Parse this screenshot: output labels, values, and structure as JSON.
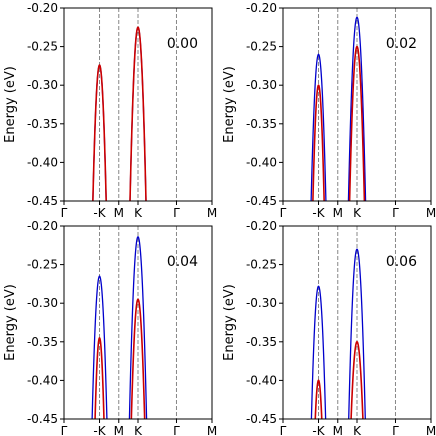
{
  "chart_data": [
    {
      "type": "line",
      "annotation": "0.00",
      "ylabel": "Energy (eV)",
      "ylim": [
        -0.45,
        -0.2
      ],
      "yticks": [
        "-0.20",
        "-0.25",
        "-0.30",
        "-0.35",
        "-0.40",
        "-0.45"
      ],
      "xlim": [
        0,
        1
      ],
      "xticks": [
        {
          "label": "Γ",
          "x": 0.0,
          "line": false
        },
        {
          "label": "-K",
          "x": 0.24,
          "line": true
        },
        {
          "label": "M",
          "x": 0.37,
          "line": true
        },
        {
          "label": "K",
          "x": 0.5,
          "line": true
        },
        {
          "label": "Γ",
          "x": 0.76,
          "line": true
        },
        {
          "label": "M",
          "x": 1.0,
          "line": false
        }
      ],
      "grid": false,
      "series": [
        {
          "color": "#0000cc",
          "bands": [
            {
              "center": 0.24,
              "top": -0.274,
              "halfwidth": 0.045
            },
            {
              "center": 0.5,
              "top": -0.225,
              "halfwidth": 0.054
            }
          ]
        },
        {
          "color": "#cc0000",
          "bands": [
            {
              "center": 0.24,
              "top": -0.274,
              "halfwidth": 0.045
            },
            {
              "center": 0.5,
              "top": -0.225,
              "halfwidth": 0.054
            }
          ]
        }
      ]
    },
    {
      "type": "line",
      "annotation": "0.02",
      "ylabel": "Energy (eV)",
      "ylim": [
        -0.45,
        -0.2
      ],
      "yticks": [
        "-0.20",
        "-0.25",
        "-0.30",
        "-0.35",
        "-0.40",
        "-0.45"
      ],
      "xlim": [
        0,
        1
      ],
      "xticks": [
        {
          "label": "Γ",
          "x": 0.0,
          "line": false
        },
        {
          "label": "-K",
          "x": 0.24,
          "line": true
        },
        {
          "label": "M",
          "x": 0.37,
          "line": true
        },
        {
          "label": "K",
          "x": 0.5,
          "line": true
        },
        {
          "label": "Γ",
          "x": 0.76,
          "line": true
        },
        {
          "label": "M",
          "x": 1.0,
          "line": false
        }
      ],
      "grid": false,
      "series": [
        {
          "color": "#0000cc",
          "bands": [
            {
              "center": 0.24,
              "top": -0.26,
              "halfwidth": 0.05
            },
            {
              "center": 0.5,
              "top": -0.212,
              "halfwidth": 0.058
            }
          ]
        },
        {
          "color": "#cc0000",
          "bands": [
            {
              "center": 0.24,
              "top": -0.3,
              "halfwidth": 0.038
            },
            {
              "center": 0.5,
              "top": -0.25,
              "halfwidth": 0.05
            }
          ]
        }
      ]
    },
    {
      "type": "line",
      "annotation": "0.04",
      "ylabel": "Energy (eV)",
      "ylim": [
        -0.45,
        -0.2
      ],
      "yticks": [
        "-0.20",
        "-0.25",
        "-0.30",
        "-0.35",
        "-0.40",
        "-0.45"
      ],
      "xlim": [
        0,
        1
      ],
      "xticks": [
        {
          "label": "Γ",
          "x": 0.0,
          "line": false
        },
        {
          "label": "-K",
          "x": 0.24,
          "line": true
        },
        {
          "label": "M",
          "x": 0.37,
          "line": true
        },
        {
          "label": "K",
          "x": 0.5,
          "line": true
        },
        {
          "label": "Γ",
          "x": 0.76,
          "line": true
        },
        {
          "label": "M",
          "x": 1.0,
          "line": false
        }
      ],
      "grid": false,
      "series": [
        {
          "color": "#0000cc",
          "bands": [
            {
              "center": 0.24,
              "top": -0.265,
              "halfwidth": 0.05
            },
            {
              "center": 0.5,
              "top": -0.214,
              "halfwidth": 0.058
            }
          ]
        },
        {
          "color": "#cc0000",
          "bands": [
            {
              "center": 0.24,
              "top": -0.345,
              "halfwidth": 0.03
            },
            {
              "center": 0.5,
              "top": -0.295,
              "halfwidth": 0.045
            }
          ]
        }
      ]
    },
    {
      "type": "line",
      "annotation": "0.06",
      "ylabel": "Energy (eV)",
      "ylim": [
        -0.45,
        -0.2
      ],
      "yticks": [
        "-0.20",
        "-0.25",
        "-0.30",
        "-0.35",
        "-0.40",
        "-0.45"
      ],
      "xlim": [
        0,
        1
      ],
      "xticks": [
        {
          "label": "Γ",
          "x": 0.0,
          "line": false
        },
        {
          "label": "-K",
          "x": 0.24,
          "line": true
        },
        {
          "label": "M",
          "x": 0.37,
          "line": true
        },
        {
          "label": "K",
          "x": 0.5,
          "line": true
        },
        {
          "label": "Γ",
          "x": 0.76,
          "line": true
        },
        {
          "label": "M",
          "x": 1.0,
          "line": false
        }
      ],
      "grid": false,
      "series": [
        {
          "color": "#0000cc",
          "bands": [
            {
              "center": 0.24,
              "top": -0.278,
              "halfwidth": 0.048
            },
            {
              "center": 0.5,
              "top": -0.23,
              "halfwidth": 0.056
            }
          ]
        },
        {
          "color": "#cc0000",
          "bands": [
            {
              "center": 0.24,
              "top": -0.4,
              "halfwidth": 0.022
            },
            {
              "center": 0.5,
              "top": -0.35,
              "halfwidth": 0.04
            }
          ]
        }
      ]
    }
  ]
}
